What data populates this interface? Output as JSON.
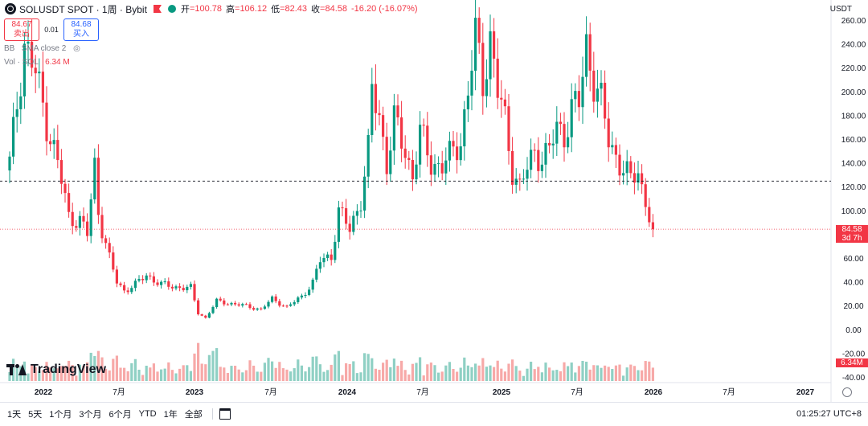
{
  "header": {
    "symbol": "SOLUSDT SPOT · 1周 · Bybit",
    "open_label": "开",
    "open": "=100.78",
    "high_label": "高",
    "high": "=106.12",
    "low_label": "低",
    "low": "=82.43",
    "close_label": "收",
    "close": "=84.58",
    "change": "-16.20 (-16.07%)"
  },
  "trade": {
    "sell_price": "84.67",
    "sell_label": "卖出",
    "spread": "0.01",
    "buy_price": "84.68",
    "buy_label": "买入"
  },
  "indicators": {
    "bb": "BB",
    "sma": "SMA close 2",
    "vol_label": "Vol · SOL",
    "vol_value": "6.34 M"
  },
  "currency": "USDT",
  "price_label": {
    "price": "84.58",
    "countdown": "3d 7h"
  },
  "volume_label": "6.34M",
  "brand": "TradingView",
  "ranges": [
    "1天",
    "5天",
    "1个月",
    "3个月",
    "6个月",
    "YTD",
    "1年",
    "全部"
  ],
  "clock": "01:25:27 UTC+8",
  "colors": {
    "up": "#089981",
    "down": "#f23645",
    "vol_up": "#8fd0c4",
    "vol_down": "#f7a9a8"
  },
  "chart_data": {
    "type": "candlestick",
    "title": "SOLUSDT SPOT · 1周 · Bybit",
    "ylabel": "USDT",
    "ylim": [
      -40,
      260
    ],
    "y_ticks": [
      "260.00",
      "240.00",
      "220.00",
      "200.00",
      "180.00",
      "160.00",
      "140.00",
      "120.00",
      "100.00",
      "80.00",
      "60.00",
      "40.00",
      "20.00",
      "0.00",
      "-20.00",
      "-40.00"
    ],
    "x_ticks": [
      "2022",
      "7月",
      "2023",
      "7月",
      "2024",
      "7月",
      "2025",
      "7月",
      "2026",
      "7月",
      "2027"
    ],
    "last_price": 84.58,
    "reference_line": 125,
    "price_path": [
      {
        "week": 0,
        "price": 140
      },
      {
        "week": 2,
        "price": 190
      },
      {
        "week": 4,
        "price": 242
      },
      {
        "week": 7,
        "price": 215
      },
      {
        "week": 10,
        "price": 175
      },
      {
        "week": 13,
        "price": 140
      },
      {
        "week": 16,
        "price": 95
      },
      {
        "week": 19,
        "price": 92
      },
      {
        "week": 21,
        "price": 80
      },
      {
        "week": 23,
        "price": 138
      },
      {
        "week": 24,
        "price": 100
      },
      {
        "week": 25,
        "price": 85
      },
      {
        "week": 27,
        "price": 60
      },
      {
        "week": 29,
        "price": 40
      },
      {
        "week": 31,
        "price": 33
      },
      {
        "week": 34,
        "price": 38
      },
      {
        "week": 37,
        "price": 46
      },
      {
        "week": 41,
        "price": 38
      },
      {
        "week": 45,
        "price": 36
      },
      {
        "week": 49,
        "price": 35
      },
      {
        "week": 51,
        "price": 14
      },
      {
        "week": 53,
        "price": 10
      },
      {
        "week": 56,
        "price": 24
      },
      {
        "week": 60,
        "price": 22
      },
      {
        "week": 64,
        "price": 20
      },
      {
        "week": 68,
        "price": 17
      },
      {
        "week": 71,
        "price": 26
      },
      {
        "week": 75,
        "price": 19
      },
      {
        "week": 79,
        "price": 28
      },
      {
        "week": 82,
        "price": 40
      },
      {
        "week": 84,
        "price": 58
      },
      {
        "week": 87,
        "price": 62
      },
      {
        "week": 89,
        "price": 100
      },
      {
        "week": 92,
        "price": 84
      },
      {
        "week": 95,
        "price": 110
      },
      {
        "week": 97,
        "price": 150
      },
      {
        "week": 98,
        "price": 200
      },
      {
        "week": 100,
        "price": 180
      },
      {
        "week": 102,
        "price": 140
      },
      {
        "week": 104,
        "price": 175
      },
      {
        "week": 107,
        "price": 150
      },
      {
        "week": 109,
        "price": 130
      },
      {
        "week": 111,
        "price": 165
      },
      {
        "week": 114,
        "price": 140
      },
      {
        "week": 117,
        "price": 138
      },
      {
        "week": 119,
        "price": 145
      },
      {
        "week": 122,
        "price": 160
      },
      {
        "week": 124,
        "price": 200
      },
      {
        "week": 126,
        "price": 245
      },
      {
        "week": 128,
        "price": 210
      },
      {
        "week": 130,
        "price": 245
      },
      {
        "week": 132,
        "price": 200
      },
      {
        "week": 134,
        "price": 175
      },
      {
        "week": 136,
        "price": 135
      },
      {
        "week": 138,
        "price": 120
      },
      {
        "week": 140,
        "price": 135
      },
      {
        "week": 142,
        "price": 150
      },
      {
        "week": 144,
        "price": 145
      },
      {
        "week": 146,
        "price": 150
      },
      {
        "week": 148,
        "price": 170
      },
      {
        "week": 150,
        "price": 165
      },
      {
        "week": 152,
        "price": 185
      },
      {
        "week": 154,
        "price": 190
      },
      {
        "week": 156,
        "price": 240
      },
      {
        "week": 158,
        "price": 210
      },
      {
        "week": 160,
        "price": 190
      },
      {
        "week": 162,
        "price": 160
      },
      {
        "week": 165,
        "price": 140
      },
      {
        "week": 168,
        "price": 125
      },
      {
        "week": 170,
        "price": 135
      },
      {
        "week": 171,
        "price": 120
      },
      {
        "week": 173,
        "price": 95
      },
      {
        "week": 174,
        "price": 85
      }
    ],
    "volume": {
      "unit": "M SOL",
      "last": 6.34
    }
  }
}
